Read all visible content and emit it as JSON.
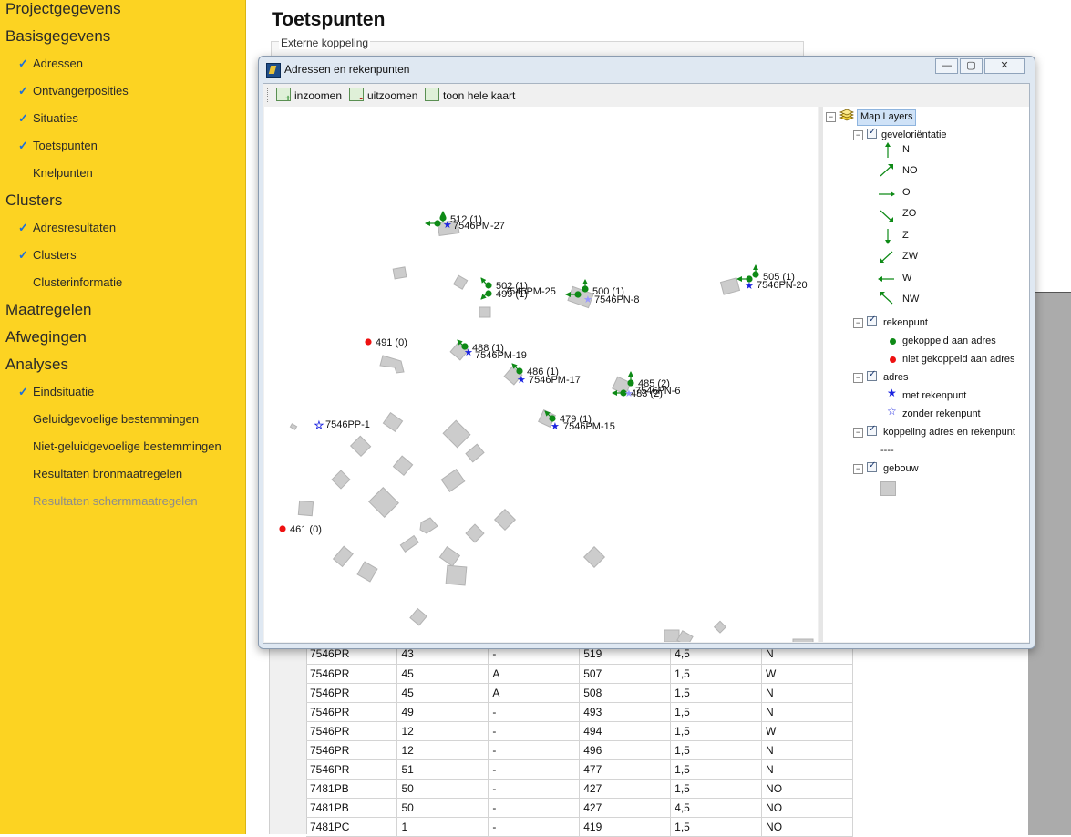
{
  "sidebar": {
    "items": [
      {
        "label": "Projectgegevens",
        "level": 0,
        "checked": false
      },
      {
        "label": "Basisgegevens",
        "level": 0,
        "checked": false
      },
      {
        "label": "Adressen",
        "level": 1,
        "checked": true
      },
      {
        "label": "Ontvangerposities",
        "level": 1,
        "checked": true
      },
      {
        "label": "Situaties",
        "level": 1,
        "checked": true
      },
      {
        "label": "Toetspunten",
        "level": 1,
        "checked": true
      },
      {
        "label": "Knelpunten",
        "level": 1,
        "checked": false
      },
      {
        "label": "Clusters",
        "level": 0,
        "checked": false
      },
      {
        "label": "Adresresultaten",
        "level": 1,
        "checked": true
      },
      {
        "label": "Clusters",
        "level": 1,
        "checked": true
      },
      {
        "label": "Clusterinformatie",
        "level": 1,
        "checked": false
      },
      {
        "label": "Maatregelen",
        "level": 0,
        "checked": false
      },
      {
        "label": "Afwegingen",
        "level": 0,
        "checked": false
      },
      {
        "label": "Analyses",
        "level": 0,
        "checked": false
      },
      {
        "label": "Eindsituatie",
        "level": 1,
        "checked": true
      },
      {
        "label": "Geluidgevoelige bestemmingen",
        "level": 1,
        "checked": false
      },
      {
        "label": "Niet-geluidgevoelige bestemmingen",
        "level": 1,
        "checked": false
      },
      {
        "label": "Resultaten bronmaatregelen",
        "level": 1,
        "checked": false
      },
      {
        "label": "Resultaten schermmaatregelen",
        "level": 1,
        "checked": false,
        "disabled": true
      }
    ],
    "check_glyph": "✓"
  },
  "main": {
    "title": "Toetspunten",
    "panel_label": "Externe koppeling"
  },
  "table": {
    "rows": [
      [
        "7546PR",
        "43",
        "-",
        "519",
        "4,5",
        "N"
      ],
      [
        "7546PR",
        "45",
        "A",
        "507",
        "1,5",
        "W"
      ],
      [
        "7546PR",
        "45",
        "A",
        "508",
        "1,5",
        "N"
      ],
      [
        "7546PR",
        "49",
        "-",
        "493",
        "1,5",
        "N"
      ],
      [
        "7546PR",
        "12",
        "-",
        "494",
        "1,5",
        "W"
      ],
      [
        "7546PR",
        "12",
        "-",
        "496",
        "1,5",
        "N"
      ],
      [
        "7546PR",
        "51",
        "-",
        "477",
        "1,5",
        "N"
      ],
      [
        "7481PB",
        "50",
        "-",
        "427",
        "1,5",
        "NO"
      ],
      [
        "7481PB",
        "50",
        "-",
        "427",
        "4,5",
        "NO"
      ],
      [
        "7481PC",
        "1",
        "-",
        "419",
        "1,5",
        "NO"
      ]
    ]
  },
  "dialog": {
    "title": "Adressen en rekenpunten",
    "minimize": "—",
    "maximize": "▢",
    "close": "✕",
    "toolbar": {
      "zoom_in": "inzoomen",
      "zoom_out": "uitzoomen",
      "full_map": "toon hele kaart"
    },
    "map": {
      "labels": [
        {
          "text": "512 (1)"
        },
        {
          "text": "7546PM-27"
        },
        {
          "text": "502 (1)"
        },
        {
          "text": "499 (1)"
        },
        {
          "text": "7546PM-25"
        },
        {
          "text": "500 (1)"
        },
        {
          "text": "7546PN-8"
        },
        {
          "text": "505 (1)"
        },
        {
          "text": "7546PN-20"
        },
        {
          "text": "491 (0)"
        },
        {
          "text": "488 (1)"
        },
        {
          "text": "7546PM-19"
        },
        {
          "text": "486 (1)"
        },
        {
          "text": "7546PM-17"
        },
        {
          "text": "485 (2)"
        },
        {
          "text": "483 (2)"
        },
        {
          "text": "7546PN-6"
        },
        {
          "text": "7546PP-1"
        },
        {
          "text": "479 (1)"
        },
        {
          "text": "7546PM-15"
        },
        {
          "text": "461 (0)"
        }
      ]
    },
    "layers": {
      "root": "Map Layers",
      "groups": [
        {
          "label": "geveloriëntatie",
          "items": [
            "N",
            "NO",
            "O",
            "ZO",
            "Z",
            "ZW",
            "W",
            "NW"
          ]
        },
        {
          "label": "rekenpunt",
          "items": [
            "gekoppeld aan adres",
            "niet gekoppeld aan adres"
          ]
        },
        {
          "label": "adres",
          "items": [
            "met rekenpunt",
            "zonder rekenpunt"
          ]
        },
        {
          "label": "koppeling adres en rekenpunt",
          "items": [
            "----"
          ]
        },
        {
          "label": "gebouw",
          "items": []
        }
      ]
    }
  },
  "colors": {
    "sidebar_bg": "#fcd322",
    "point_linked": "#0e8a16",
    "point_unlinked": "#ee1111",
    "address_star": "#1a22e0",
    "building": "#cccccc"
  }
}
